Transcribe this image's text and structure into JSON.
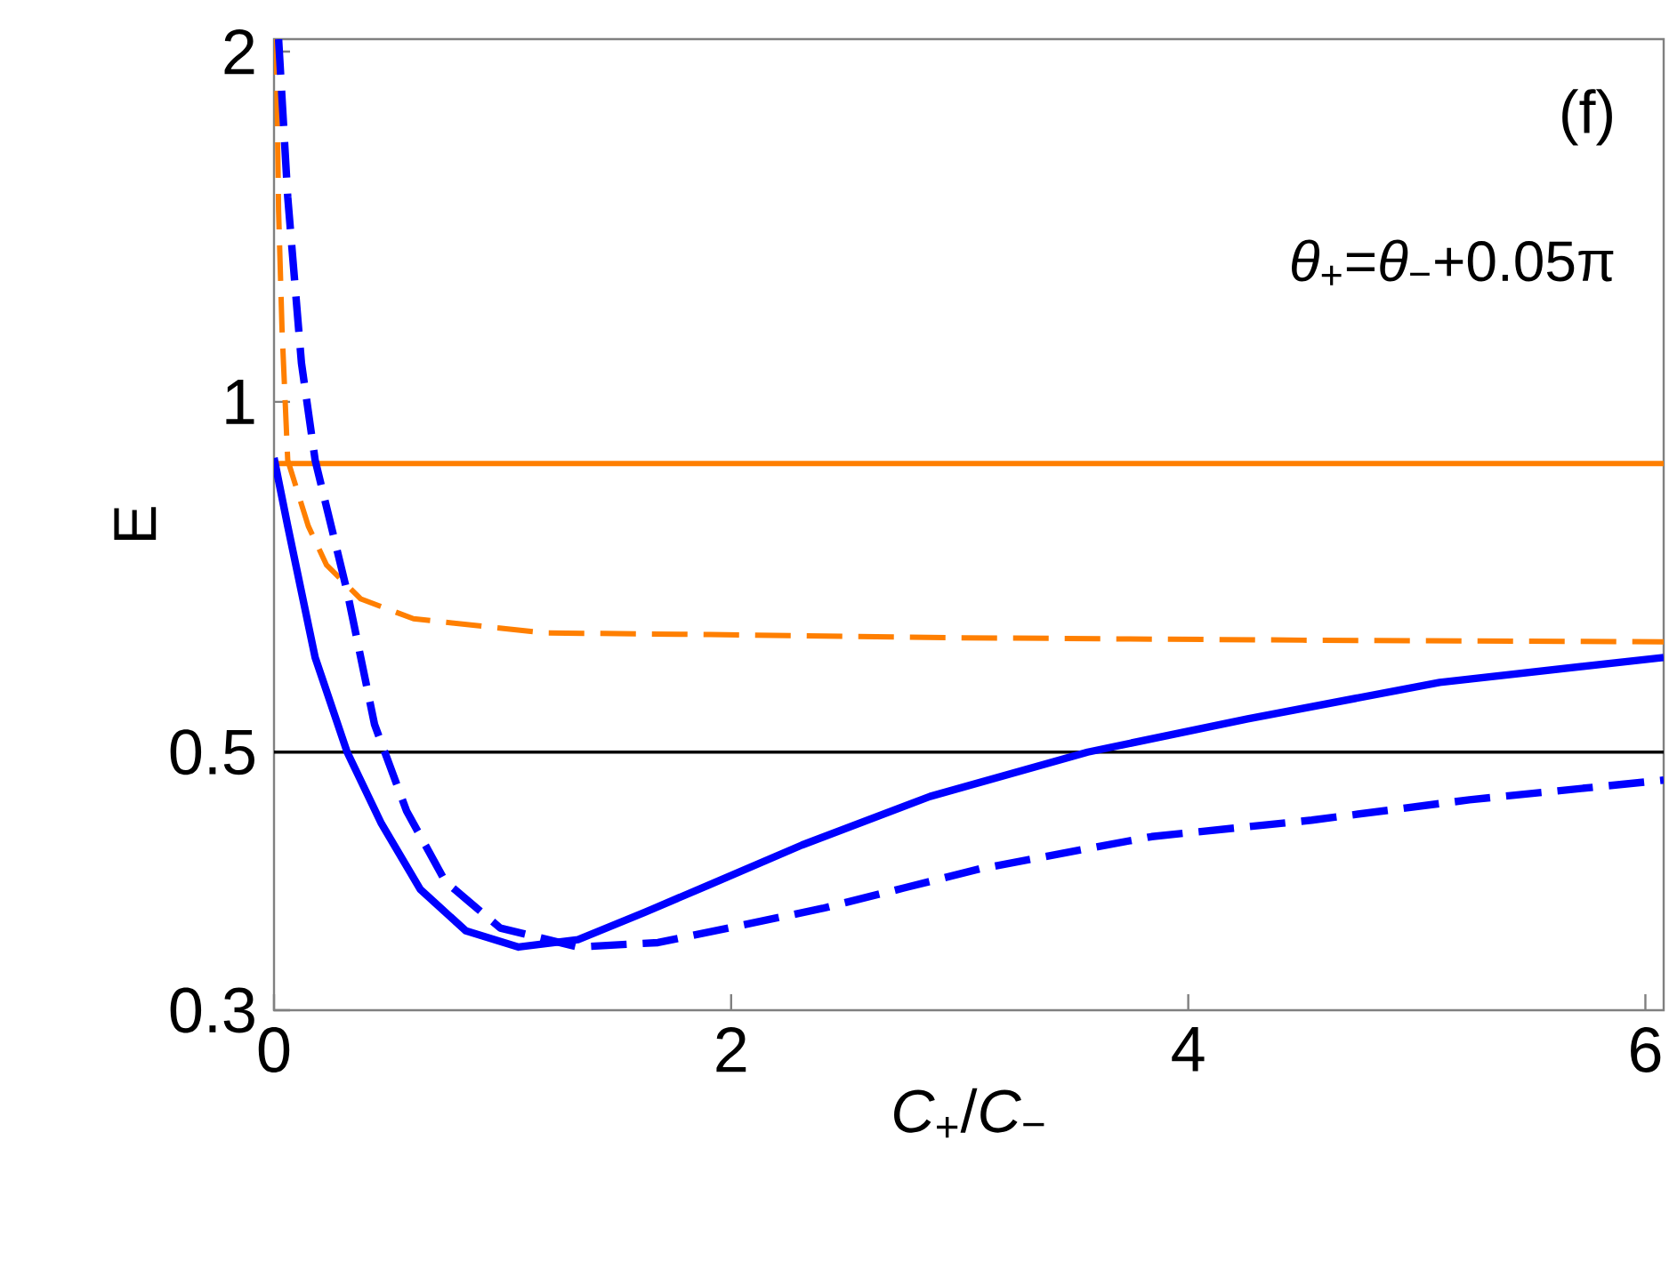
{
  "chart_data": {
    "type": "line",
    "xlabel": "*C*$_{+}$/*C*$_{−}$",
    "ylabel": "E",
    "annotations": [
      "(f)",
      "*θ*$_{+}$=*θ*$_{−}$+0.05π"
    ],
    "log": "y",
    "grid": false,
    "marker": "none",
    "xlim": [
      0,
      6.08
    ],
    "ylim": [
      0.3,
      2.05
    ],
    "xticks": [
      0,
      2,
      4,
      6
    ],
    "yticks": [
      0.3,
      0.5,
      1,
      2
    ],
    "ref_lines": [
      {
        "axis": "y",
        "value": 0.5,
        "color": "#000000",
        "line_style": "solid"
      }
    ],
    "series": [
      {
        "color": "#ff7f00",
        "line_style": "solid",
        "x": [
          0,
          6.08
        ],
        "values": [
          0.885,
          0.885
        ]
      },
      {
        "color": "#ff7f00",
        "line_style": "dashed",
        "x": [
          0.01,
          0.02,
          0.035,
          0.06,
          0.15,
          0.23,
          0.38,
          0.61,
          1.19,
          1.91,
          3,
          4.5,
          6.08
        ],
        "values": [
          2.05,
          1.46,
          1.155,
          0.891,
          0.782,
          0.724,
          0.677,
          0.651,
          0.633,
          0.631,
          0.627,
          0.624,
          0.622
        ]
      },
      {
        "color": "#0000ff",
        "line_style": "solid",
        "x": [
          0,
          0.06,
          0.18,
          0.32,
          0.47,
          0.64,
          0.84,
          1.07,
          1.33,
          1.62,
          1.91,
          2.31,
          2.87,
          3.56,
          4.26,
          5.1,
          6.08
        ],
        "values": [
          0.895,
          0.782,
          0.603,
          0.5,
          0.434,
          0.381,
          0.351,
          0.34,
          0.345,
          0.364,
          0.385,
          0.416,
          0.458,
          0.5,
          0.534,
          0.574,
          0.603
        ]
      },
      {
        "color": "#0000ff",
        "line_style": "dashed",
        "x": [
          0.02,
          0.06,
          0.12,
          0.18,
          0.32,
          0.44,
          0.58,
          0.75,
          0.99,
          1.33,
          1.68,
          2.4,
          3.09,
          3.84,
          4.54,
          5.23,
          6.08
        ],
        "values": [
          2.05,
          1.5,
          1.08,
          0.891,
          0.687,
          0.528,
          0.445,
          0.387,
          0.353,
          0.34,
          0.343,
          0.367,
          0.397,
          0.423,
          0.437,
          0.455,
          0.473
        ]
      }
    ]
  }
}
